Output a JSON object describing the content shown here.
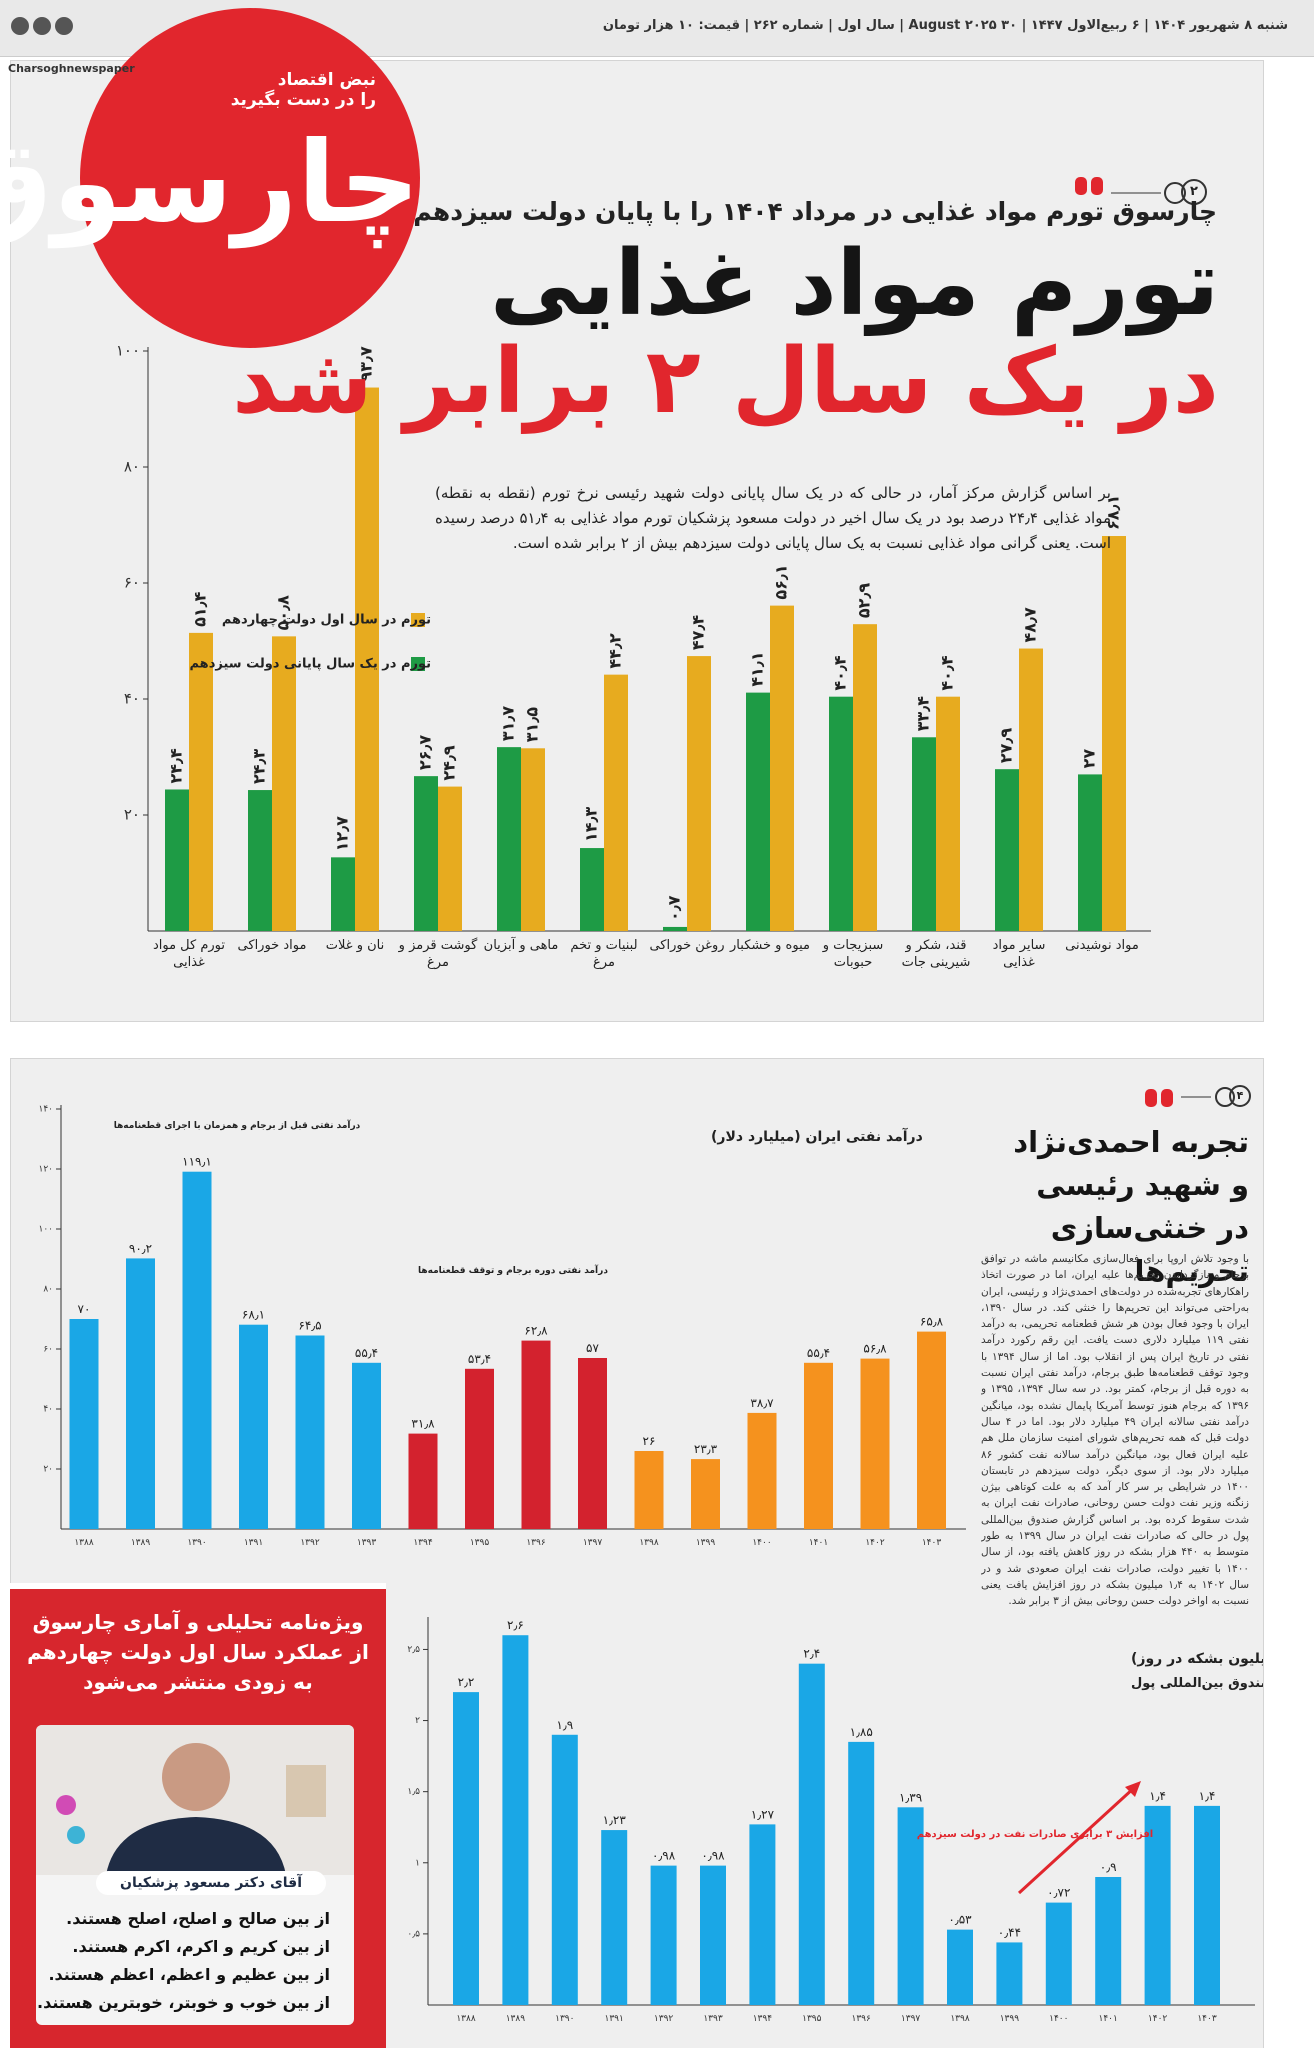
{
  "header": {
    "date_line": "شنبه ۸ شهریور ۱۴۰۴ | ۶ ربیع‌الاول ۱۴۴۷ | ۳۰ August ۲۰۲۵ | سال اول | شماره ۲۶۲ | قیمت: ۱۰ هزار تومان",
    "social": "Charsoghnewspaper"
  },
  "logo": {
    "name": "چارسوق",
    "slogan_1": "نبض اقتصاد",
    "slogan_2": "را در دست بگیرید"
  },
  "article_1": {
    "page_number": "۲",
    "kicker": "چارسوق تورم مواد غذایی در مرداد ۱۴۰۴ را با پایان دولت سیزدهم مقایسه کرد",
    "headline_1": "تورم مواد غذایی",
    "headline_2": "در یک سال ۲ برابر شد",
    "lead": "بر اساس گزارش مرکز آمار، در حالی که در یک سال پایانی دولت شهید رئیسی نرخ تورم (نقطه به نقطه) مواد غذایی ۲۴٫۴ درصد بود در یک سال اخیر در دولت مسعود پزشکیان تورم مواد غذایی به ۵۱٫۴ درصد رسیده است. یعنی گرانی مواد غذایی نسبت به یک سال پایانی دولت سیزدهم بیش از ۲ برابر شده است."
  },
  "article_2": {
    "page_number": "۴",
    "headline": [
      "تجربه احمدی‌نژاد",
      "و شهید رئیسی",
      "در خنثی‌سازی تحریم‌ها"
    ],
    "body": "با وجود تلاش اروپا برای فعال‌سازی مکانیسم ماشه در توافق برجام و بازگرداندن تحریم‌ها علیه ایران، اما در صورت اتخاذ راهکارهای تجربه‌شده در دولت‌های احمدی‌نژاد و رئیسی، ایران به‌راحتی می‌تواند این تحریم‌ها را خنثی کند. در سال ۱۳۹۰، ایران با وجود فعال بودن هر شش قطعنامه تحریمی، به درآمد نفتی ۱۱۹ میلیارد دلاری دست یافت. این رقم رکورد درآمد نفتی در تاریخ ایران پس از انقلاب بود. اما از سال ۱۳۹۴ با وجود توقف قطعنامه‌ها طبق برجام، درآمد نفتی ایران نسبت به دوره قبل از برجام، کمتر بود. در سه سال ۱۳۹۴، ۱۳۹۵ و ۱۳۹۶ که برجام هنوز توسط آمریکا پایمال نشده بود، میانگین درآمد نفتی سالانه ایران ۴۹ میلیارد دلار بود. اما در ۴ سال دولت قبل که همه تحریم‌های شورای امنیت سازمان ملل هم علیه ایران فعال بود، میانگین درآمد سالانه نفت کشور ۸۶ میلیارد دلار بود. از سوی دیگر، دولت سیزدهم در تابستان ۱۴۰۰ در شرایطی بر سر کار آمد که به علت کوتاهی بیژن زنگنه وزیر نفت دولت حسن روحانی، صادرات نفت ایران به شدت سقوط کرده بود. بر اساس گزارش صندوق بین‌المللی پول در حالی که صادرات نفت ایران در سال ۱۳۹۹ به طور متوسط به ۴۴۰ هزار بشکه در روز کاهش یافته بود، از سال ۱۴۰۰ با تغییر دولت، صادرات نفت ایران صعودی شد و در سال ۱۴۰۲ به ۱٫۴ میلیون بشکه در روز افزایش یافت یعنی نسبت به اواخر دولت حسن روحانی بیش از ۳ برابر شد."
  },
  "ad": {
    "title": [
      "ویژه‌نامه تحلیلی و آماری چارسوق",
      "از عملکرد سال اول دولت چهاردهم",
      "به زودی منتشر می‌شود"
    ],
    "caption": "آقای دکتر مسعود پزشکیان",
    "lines": [
      "از بین صالح و اصلح، اصلح هستند.",
      "از بین کریم و اکرم، اکرم هستند.",
      "از بین عظیم و اعظم، اعظم هستند.",
      "از بین خوب و خوبتر، خوبترین هستند."
    ]
  },
  "chart_data": [
    {
      "type": "bar",
      "categories": [
        "تورم کل مواد غذایی",
        "مواد خوراکی",
        "نان و غلات",
        "گوشت قرمز و مرغ",
        "ماهی و آبزیان",
        "لبنیات و تخم مرغ",
        "روغن خوراکی",
        "میوه و خشکبار",
        "سبزیجات و حبوبات",
        "قند، شکر و شیرینی جات",
        "سایر مواد غذایی",
        "مواد نوشیدنی"
      ],
      "series": [
        {
          "name": "تورم در یک سال پایانی دولت سیزدهم",
          "color": "#1e9b45",
          "values": [
            24.4,
            24.3,
            12.7,
            26.7,
            31.7,
            14.3,
            0.7,
            41.1,
            40.4,
            33.4,
            27.9,
            27
          ],
          "value_labels": [
            "۲۴٫۴",
            "۲۴٫۳",
            "۱۲٫۷",
            "۲۶٫۷",
            "۳۱٫۷",
            "۱۴٫۳",
            "۰٫۷",
            "۴۱٫۱",
            "۴۰٫۴",
            "۳۳٫۴",
            "۲۷٫۹",
            "۲۷"
          ]
        },
        {
          "name": "تورم در سال اول دولت چهاردهم",
          "color": "#e7ab1f",
          "values": [
            51.4,
            50.8,
            93.7,
            24.9,
            31.5,
            44.2,
            47.4,
            56.1,
            52.9,
            40.4,
            48.7,
            68.1
          ],
          "value_labels": [
            "۵۱٫۴",
            "۵۰٫۸",
            "۹۳٫۷",
            "۲۴٫۹",
            "۳۱٫۵",
            "۴۴٫۲",
            "۴۷٫۴",
            "۵۶٫۱",
            "۵۲٫۹",
            "۴۰٫۴",
            "۴۸٫۷",
            "۶۸٫۱"
          ]
        }
      ],
      "ylim": [
        0,
        100
      ],
      "yticks": [
        {
          "value": 20,
          "label": "۲۰"
        },
        {
          "value": 40,
          "label": "۴۰"
        },
        {
          "value": 60,
          "label": "۶۰"
        },
        {
          "value": 80,
          "label": "۸۰"
        },
        {
          "value": 100,
          "label": "۱۰۰"
        }
      ]
    },
    {
      "type": "bar",
      "title": "درآمد نفتی ایران (میلیارد دلار)",
      "annotations": [
        "درآمد نفتی قبل از برجام و همزمان با اجرای قطعنامه‌ها",
        "درآمد نفتی دوره برجام و توقف قطعنامه‌ها"
      ],
      "categories": [
        "۱۳۸۸",
        "۱۳۸۹",
        "۱۳۹۰",
        "۱۳۹۱",
        "۱۳۹۲",
        "۱۳۹۳",
        "۱۳۹۴",
        "۱۳۹۵",
        "۱۳۹۶",
        "۱۳۹۷",
        "۱۳۹۸",
        "۱۳۹۹",
        "۱۴۰۰",
        "۱۴۰۱",
        "۱۴۰۲",
        "۱۴۰۳"
      ],
      "values": [
        70,
        90.2,
        119.1,
        68.1,
        64.5,
        55.4,
        31.8,
        53.4,
        62.8,
        57,
        26,
        23.3,
        38.7,
        55.4,
        56.8,
        65.8
      ],
      "value_labels": [
        "۷۰",
        "۹۰٫۲",
        "۱۱۹٫۱",
        "۶۸٫۱",
        "۶۴٫۵",
        "۵۵٫۴",
        "۳۱٫۸",
        "۵۳٫۴",
        "۶۲٫۸",
        "۵۷",
        "۲۶",
        "۲۳٫۳",
        "۳۸٫۷",
        "۵۵٫۴",
        "۵۶٫۸",
        "۶۵٫۸"
      ],
      "bar_colors": [
        "#1aa7e6",
        "#1aa7e6",
        "#1aa7e6",
        "#1aa7e6",
        "#1aa7e6",
        "#1aa7e6",
        "#d3222e",
        "#d3222e",
        "#d3222e",
        "#d3222e",
        "#f5921e",
        "#f5921e",
        "#f5921e",
        "#f5921e",
        "#f5921e",
        "#f5921e"
      ],
      "ylim": [
        0,
        140
      ],
      "yticks": [
        {
          "value": 20,
          "label": "۲۰"
        },
        {
          "value": 40,
          "label": "۴۰"
        },
        {
          "value": 60,
          "label": "۶۰"
        },
        {
          "value": 80,
          "label": "۸۰"
        },
        {
          "value": 100,
          "label": "۱۰۰"
        },
        {
          "value": 120,
          "label": "۱۲۰"
        },
        {
          "value": 140,
          "label": "۱۴۰"
        }
      ]
    },
    {
      "type": "bar",
      "title": "صادرات نفت ایران (میلیون بشکه در روز)",
      "source": "منبع: صندوق بین‌المللی پول",
      "annotations": [
        "افزایش ۳ برابری صادرات نفت در دولت سیزدهم"
      ],
      "categories": [
        "۱۳۸۸",
        "۱۳۸۹",
        "۱۳۹۰",
        "۱۳۹۱",
        "۱۳۹۲",
        "۱۳۹۳",
        "۱۳۹۴",
        "۱۳۹۵",
        "۱۳۹۶",
        "۱۳۹۷",
        "۱۳۹۸",
        "۱۳۹۹",
        "۱۴۰۰",
        "۱۴۰۱",
        "۱۴۰۲",
        "۱۴۰۳"
      ],
      "values": [
        2.2,
        2.6,
        1.9,
        1.23,
        0.98,
        0.98,
        1.27,
        2.4,
        1.85,
        1.39,
        0.53,
        0.44,
        0.72,
        0.9,
        1.4,
        1.4
      ],
      "value_labels": [
        "۲٫۲",
        "۲٫۶",
        "۱٫۹",
        "۱٫۲۳",
        "۰٫۹۸",
        "۰٫۹۸",
        "۱٫۲۷",
        "۲٫۴",
        "۱٫۸۵",
        "۱٫۳۹",
        "۰٫۵۳",
        "۰٫۴۴",
        "۰٫۷۲",
        "۰٫۹",
        "۱٫۴",
        "۱٫۴"
      ],
      "color": "#1aa7e6",
      "ylim": [
        0,
        2.7
      ],
      "yticks": [
        {
          "value": 0.5,
          "label": "۰٫۵"
        },
        {
          "value": 1,
          "label": "۱"
        },
        {
          "value": 1.5,
          "label": "۱٫۵"
        },
        {
          "value": 2,
          "label": "۲"
        },
        {
          "value": 2.5,
          "label": "۲٫۵"
        }
      ]
    }
  ]
}
